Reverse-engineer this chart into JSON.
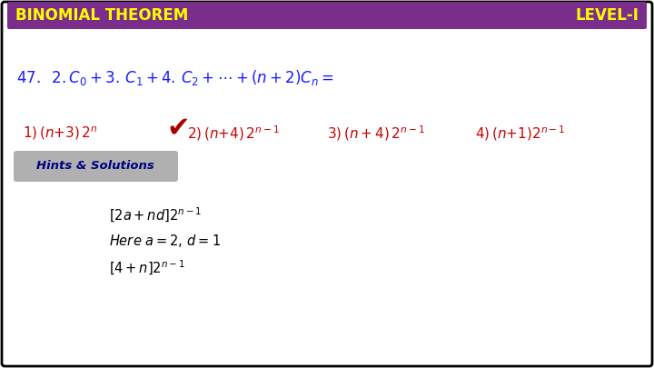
{
  "bg_color": "#ffffff",
  "border_color": "#000000",
  "header_bg": "#7b2d8b",
  "header_text_left": "BINOMIAL THEOREM",
  "header_text_right": "LEVEL-I",
  "header_text_color": "#ffff00",
  "question_color": "#1a1aff",
  "options_color": "#cc0000",
  "solutions_bg": "#b0b0b0",
  "solutions_text_color": "#000080",
  "body_text_color": "#000000",
  "checkmark_color": "#aa0000"
}
